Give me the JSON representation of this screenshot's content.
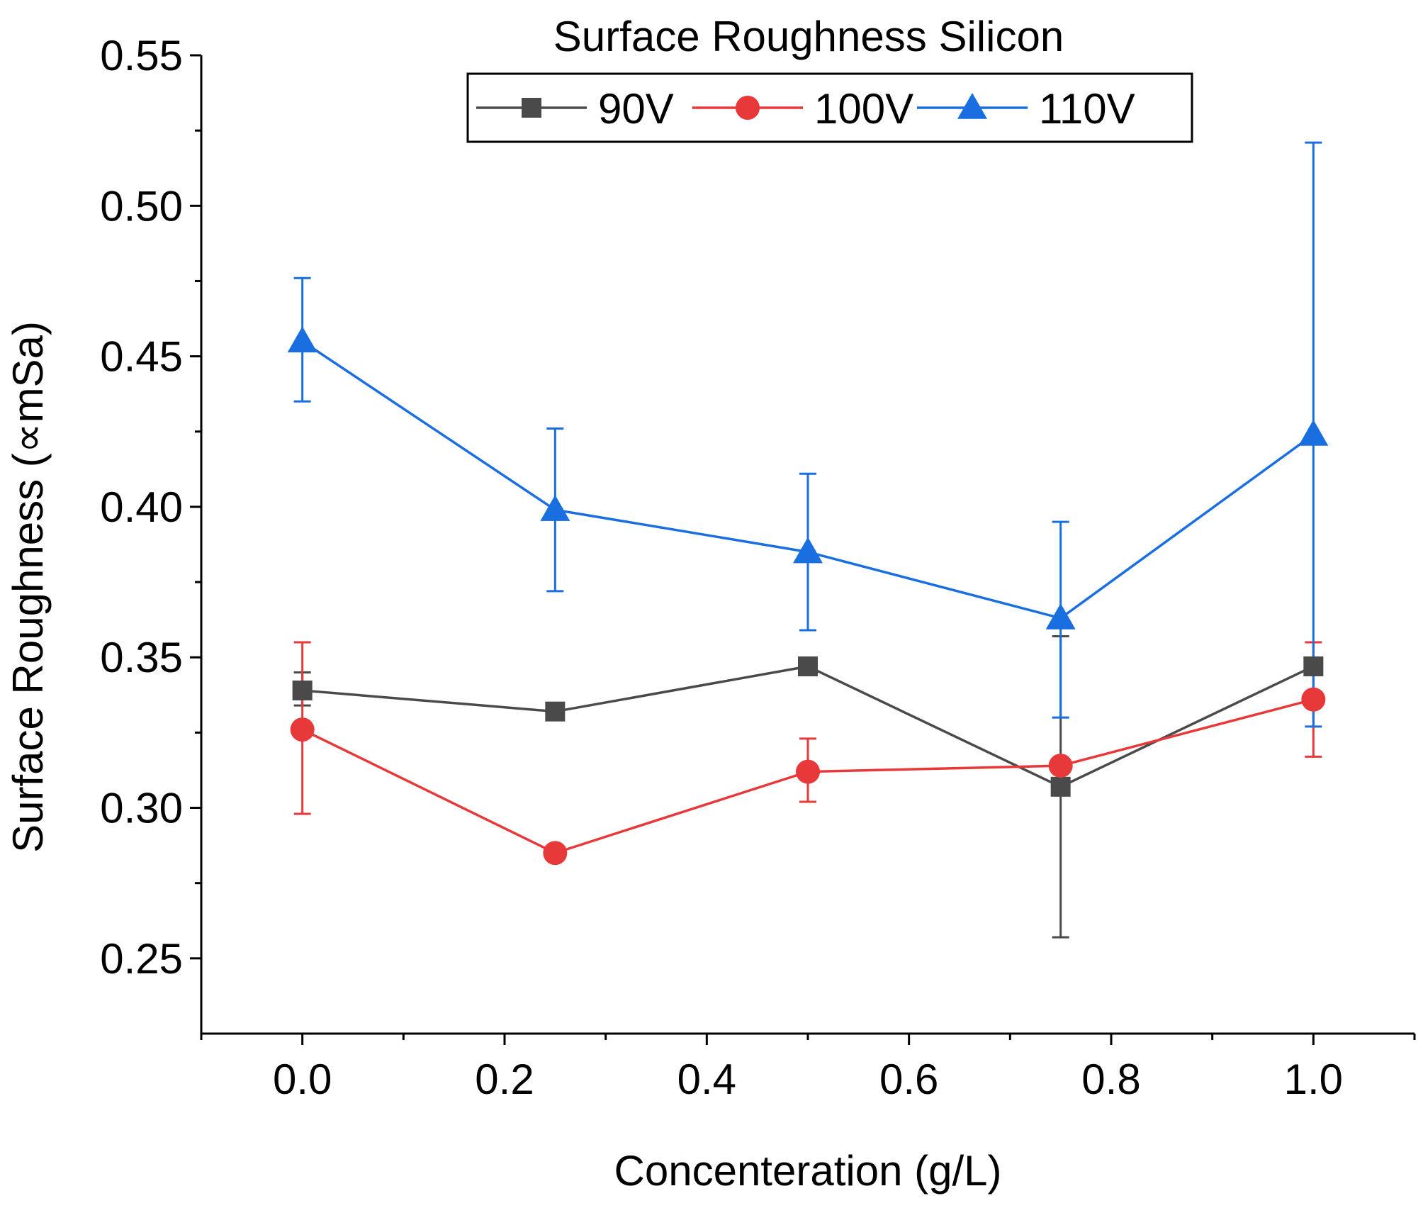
{
  "chart_data": {
    "type": "line",
    "xlabel": "Concenteration (g/L)",
    "ylabel": "Surface Roughness (∝mSa)",
    "xlim": [
      -0.1,
      1.1
    ],
    "ylim": [
      0.225,
      0.55
    ],
    "xticks": [
      0.0,
      0.2,
      0.4,
      0.6,
      0.8,
      1.0
    ],
    "xtick_labels": [
      "0.0",
      "0.2",
      "0.4",
      "0.6",
      "0.8",
      "1.0"
    ],
    "yticks": [
      0.25,
      0.3,
      0.35,
      0.4,
      0.45,
      0.5,
      0.55
    ],
    "ytick_labels": [
      "0.25",
      "0.30",
      "0.35",
      "0.40",
      "0.45",
      "0.50",
      "0.55"
    ],
    "grid": false,
    "legend": {
      "title": "Surface Roughness Silicon",
      "placement": "top-center"
    },
    "x": [
      0.0,
      0.25,
      0.5,
      0.75,
      1.0
    ],
    "series": [
      {
        "name": "90V",
        "color": "#4a4a4a",
        "marker": "square",
        "values": [
          0.339,
          0.332,
          0.347,
          0.307,
          0.347
        ],
        "err_low": [
          0.334,
          0.332,
          0.347,
          0.257,
          0.347
        ],
        "err_high": [
          0.345,
          0.332,
          0.347,
          0.357,
          0.347
        ]
      },
      {
        "name": "100V",
        "color": "#e8393a",
        "marker": "circle",
        "values": [
          0.326,
          0.285,
          0.312,
          0.314,
          0.336
        ],
        "err_low": [
          0.298,
          0.285,
          0.302,
          0.314,
          0.317
        ],
        "err_high": [
          0.355,
          0.285,
          0.323,
          0.314,
          0.355
        ]
      },
      {
        "name": "110V",
        "color": "#1a6fe0",
        "marker": "triangle",
        "values": [
          0.455,
          0.399,
          0.385,
          0.363,
          0.424
        ],
        "err_low": [
          0.435,
          0.372,
          0.359,
          0.33,
          0.327
        ],
        "err_high": [
          0.476,
          0.426,
          0.411,
          0.395,
          0.521
        ]
      }
    ]
  }
}
